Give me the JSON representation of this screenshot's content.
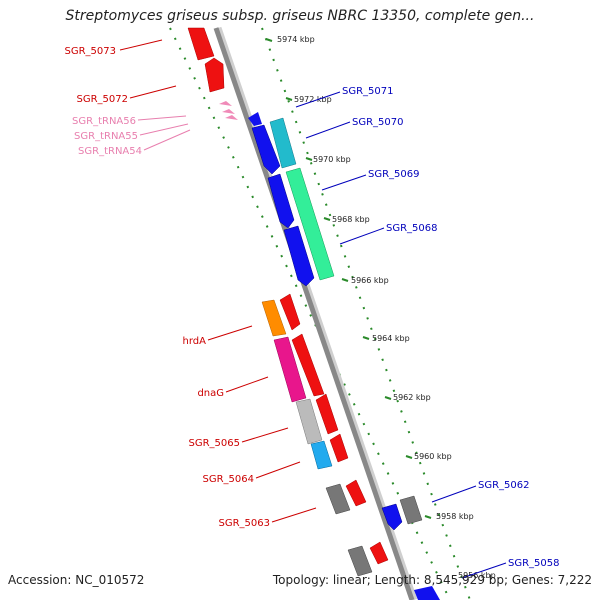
{
  "title": "Streptomyces griseus subsp. griseus NBRC 13350, complete gen...",
  "accession": "Accession: NC_010572",
  "topology": "Topology: linear; Length: 8,545,929 bp; Genes: 7,222",
  "colors": {
    "backbone": "#888888",
    "dotted": "#2a8a2a",
    "label_red": "#cc0000",
    "label_blue": "#0000bb",
    "label_pink": "#e87fae"
  },
  "kbp_ticks": [
    "5974 kbp",
    "5972 kbp",
    "5970 kbp",
    "5968 kbp",
    "5966 kbp",
    "5964 kbp",
    "5962 kbp",
    "5960 kbp",
    "5958 kbp",
    "5956 kbp"
  ],
  "left_labels": [
    {
      "text": "SGR_5073",
      "color": "red"
    },
    {
      "text": "SGR_5072",
      "color": "red"
    },
    {
      "text": "SGR_tRNA56",
      "color": "pink"
    },
    {
      "text": "SGR_tRNA55",
      "color": "pink"
    },
    {
      "text": "SGR_tRNA54",
      "color": "pink"
    },
    {
      "text": "hrdA",
      "color": "red"
    },
    {
      "text": "dnaG",
      "color": "red"
    },
    {
      "text": "SGR_5065",
      "color": "red"
    },
    {
      "text": "SGR_5064",
      "color": "red"
    },
    {
      "text": "SGR_5063",
      "color": "red"
    }
  ],
  "right_labels": [
    {
      "text": "SGR_5071",
      "color": "blue"
    },
    {
      "text": "SGR_5070",
      "color": "blue"
    },
    {
      "text": "SGR_5069",
      "color": "blue"
    },
    {
      "text": "SGR_5068",
      "color": "blue"
    },
    {
      "text": "SGR_5062",
      "color": "blue"
    },
    {
      "text": "SGR_5058",
      "color": "blue"
    }
  ]
}
